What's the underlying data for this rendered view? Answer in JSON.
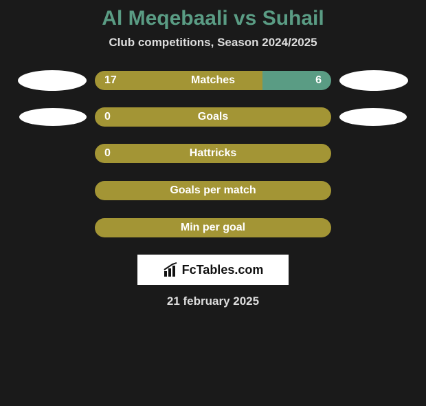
{
  "title": "Al Meqebaali vs Suhail",
  "subtitle": "Club competitions, Season 2024/2025",
  "colors": {
    "left": "#a39535",
    "right": "#5a9c84",
    "title": "#5a9c84"
  },
  "stats": [
    {
      "name": "Matches",
      "leftValue": "17",
      "rightValue": "6",
      "leftPct": 71,
      "rightPct": 29,
      "showLeftCapsule": true,
      "showRightCapsule": true,
      "capsuleSmall": false
    },
    {
      "name": "Goals",
      "leftValue": "0",
      "rightValue": "",
      "leftPct": 100,
      "rightPct": 0,
      "showLeftCapsule": true,
      "showRightCapsule": true,
      "capsuleSmall": true
    },
    {
      "name": "Hattricks",
      "leftValue": "0",
      "rightValue": "",
      "leftPct": 100,
      "rightPct": 0,
      "showLeftCapsule": false,
      "showRightCapsule": false,
      "capsuleSmall": false
    },
    {
      "name": "Goals per match",
      "leftValue": "",
      "rightValue": "",
      "leftPct": 100,
      "rightPct": 0,
      "showLeftCapsule": false,
      "showRightCapsule": false,
      "capsuleSmall": false
    },
    {
      "name": "Min per goal",
      "leftValue": "",
      "rightValue": "",
      "leftPct": 100,
      "rightPct": 0,
      "showLeftCapsule": false,
      "showRightCapsule": false,
      "capsuleSmall": false
    }
  ],
  "logo": "FcTables.com",
  "date": "21 february 2025"
}
